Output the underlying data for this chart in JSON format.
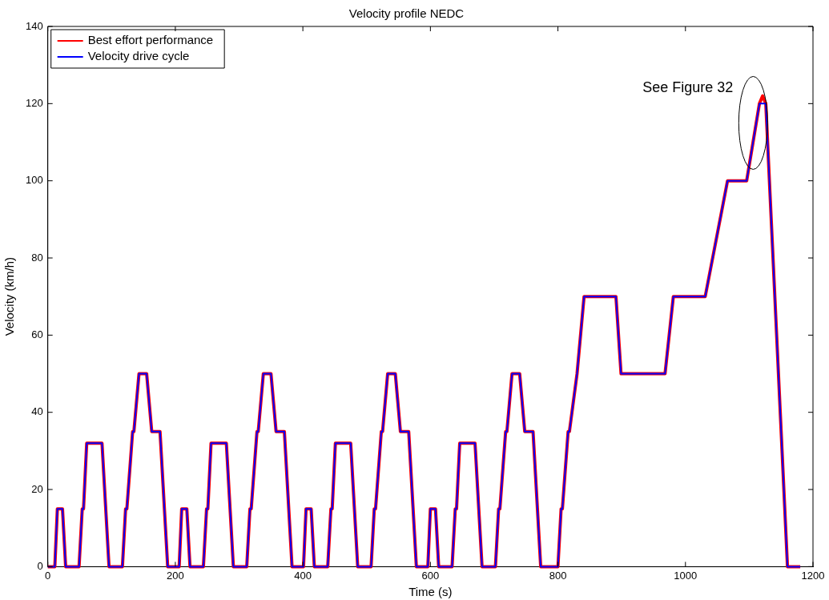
{
  "chart_data": {
    "type": "line",
    "title": "Velocity profile NEDC",
    "xlabel": "Time (s)",
    "ylabel": "Velocity (km/h)",
    "xlim": [
      0,
      1200
    ],
    "xticks": [
      0,
      200,
      400,
      600,
      800,
      1000,
      1200
    ],
    "ylim": [
      0,
      140
    ],
    "yticks": [
      0,
      20,
      40,
      60,
      80,
      100,
      120,
      140
    ],
    "grid": false,
    "legend": "top left",
    "marker": "none",
    "line_style": "solid",
    "annotations": [
      {
        "text": "See Figure 32",
        "x": 1120,
        "y": 115
      }
    ],
    "series": [
      {
        "name": "Best effort performance",
        "color": "#ff0000",
        "x": [
          0,
          11,
          15,
          23,
          28,
          49,
          54,
          56,
          61,
          85,
          96,
          117,
          122,
          124,
          133,
          135,
          143,
          155,
          163,
          176,
          188,
          206,
          210,
          218,
          223,
          244,
          249,
          251,
          256,
          280,
          291,
          312,
          317,
          319,
          328,
          330,
          338,
          350,
          358,
          371,
          383,
          401,
          405,
          413,
          418,
          439,
          444,
          446,
          451,
          475,
          486,
          507,
          512,
          514,
          523,
          525,
          533,
          545,
          553,
          566,
          578,
          596,
          600,
          608,
          613,
          634,
          639,
          641,
          646,
          670,
          681,
          702,
          707,
          709,
          718,
          720,
          728,
          740,
          748,
          761,
          773,
          800,
          805,
          807,
          816,
          818,
          830,
          841,
          891,
          899,
          968,
          981,
          1031,
          1066,
          1096,
          1116,
          1121,
          1126,
          1160,
          1180
        ],
        "values": [
          0,
          0,
          15,
          15,
          0,
          0,
          15,
          15,
          32,
          32,
          0,
          0,
          15,
          15,
          35,
          35,
          50,
          50,
          35,
          35,
          0,
          0,
          15,
          15,
          0,
          0,
          15,
          15,
          32,
          32,
          0,
          0,
          15,
          15,
          35,
          35,
          50,
          50,
          35,
          35,
          0,
          0,
          15,
          15,
          0,
          0,
          15,
          15,
          32,
          32,
          0,
          0,
          15,
          15,
          35,
          35,
          50,
          50,
          35,
          35,
          0,
          0,
          15,
          15,
          0,
          0,
          15,
          15,
          32,
          32,
          0,
          0,
          15,
          15,
          35,
          35,
          50,
          50,
          35,
          35,
          0,
          0,
          15,
          15,
          35,
          35,
          50,
          70,
          70,
          50,
          50,
          70,
          70,
          100,
          100,
          120,
          122,
          120,
          0,
          0
        ]
      },
      {
        "name": "Velocity drive cycle",
        "color": "#0000ff",
        "x": [
          0,
          11,
          15,
          23,
          28,
          49,
          54,
          56,
          61,
          85,
          96,
          117,
          122,
          124,
          133,
          135,
          143,
          155,
          163,
          176,
          188,
          206,
          210,
          218,
          223,
          244,
          249,
          251,
          256,
          280,
          291,
          312,
          317,
          319,
          328,
          330,
          338,
          350,
          358,
          371,
          383,
          401,
          405,
          413,
          418,
          439,
          444,
          446,
          451,
          475,
          486,
          507,
          512,
          514,
          523,
          525,
          533,
          545,
          553,
          566,
          578,
          596,
          600,
          608,
          613,
          634,
          639,
          641,
          646,
          670,
          681,
          702,
          707,
          709,
          718,
          720,
          728,
          740,
          748,
          761,
          773,
          800,
          805,
          807,
          816,
          818,
          830,
          841,
          891,
          899,
          968,
          981,
          1031,
          1066,
          1096,
          1116,
          1126,
          1160,
          1180
        ],
        "values": [
          0,
          0,
          15,
          15,
          0,
          0,
          15,
          15,
          32,
          32,
          0,
          0,
          15,
          15,
          35,
          35,
          50,
          50,
          35,
          35,
          0,
          0,
          15,
          15,
          0,
          0,
          15,
          15,
          32,
          32,
          0,
          0,
          15,
          15,
          35,
          35,
          50,
          50,
          35,
          35,
          0,
          0,
          15,
          15,
          0,
          0,
          15,
          15,
          32,
          32,
          0,
          0,
          15,
          15,
          35,
          35,
          50,
          50,
          35,
          35,
          0,
          0,
          15,
          15,
          0,
          0,
          15,
          15,
          32,
          32,
          0,
          0,
          15,
          15,
          35,
          35,
          50,
          50,
          35,
          35,
          0,
          0,
          15,
          15,
          35,
          35,
          50,
          70,
          70,
          50,
          50,
          70,
          70,
          100,
          100,
          120,
          120,
          0,
          0
        ]
      }
    ]
  }
}
